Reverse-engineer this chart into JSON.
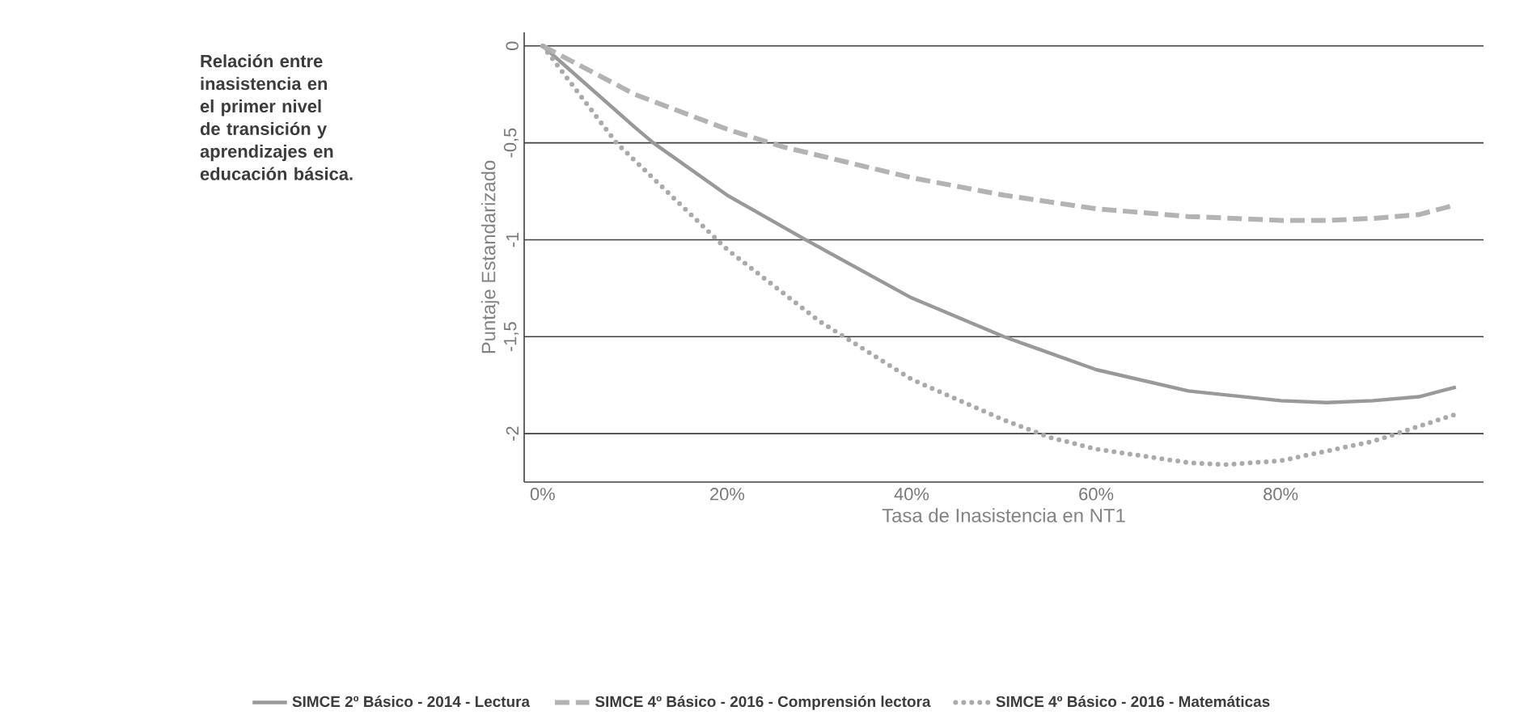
{
  "chart_data": {
    "type": "line",
    "title": "Relación entre inasistencia en el primer nivel de transición y aprendizajes en educación básica.",
    "xlabel": "Tasa de Inasistencia en NT1",
    "ylabel": "Puntaje Estandarizado",
    "xlim": [
      -2,
      102
    ],
    "ylim": [
      -2.25,
      0.07
    ],
    "xticks": [
      {
        "value": 0,
        "label": "0%"
      },
      {
        "value": 20,
        "label": "20%"
      },
      {
        "value": 40,
        "label": "40%"
      },
      {
        "value": 60,
        "label": "60%"
      },
      {
        "value": 80,
        "label": "80%"
      }
    ],
    "yticks": [
      {
        "value": 0,
        "label": "0"
      },
      {
        "value": -0.5,
        "label": "-0,5"
      },
      {
        "value": -1,
        "label": "-1"
      },
      {
        "value": -1.5,
        "label": "-1,5"
      },
      {
        "value": -2,
        "label": "-2"
      }
    ],
    "grid": "y",
    "legend": "bottom",
    "series": [
      {
        "name": "SIMCE 2º Básico - 2014 - Lectura",
        "color": "#999999",
        "line_style": "solid",
        "x": [
          0,
          10,
          12,
          20,
          28.5,
          40,
          50,
          60,
          70,
          80,
          85,
          90,
          95,
          99
        ],
        "values": [
          0,
          -0.42,
          -0.5,
          -0.77,
          -1.0,
          -1.3,
          -1.5,
          -1.67,
          -1.78,
          -1.83,
          -1.84,
          -1.83,
          -1.81,
          -1.76
        ]
      },
      {
        "name": "SIMCE 4º Básico - 2016 - Comprensión lectora",
        "color": "#b3b3b3",
        "line_style": "dashed",
        "x": [
          0,
          10,
          20,
          26,
          40,
          50,
          60,
          70,
          80,
          85,
          90,
          95,
          99
        ],
        "values": [
          0,
          -0.25,
          -0.43,
          -0.52,
          -0.68,
          -0.77,
          -0.84,
          -0.88,
          -0.9,
          -0.9,
          -0.89,
          -0.87,
          -0.82
        ]
      },
      {
        "name": "SIMCE 4º Básico - 2016 - Matemáticas",
        "color": "#aaaaaa",
        "line_style": "dotted",
        "x": [
          0,
          8,
          20,
          30,
          40,
          50,
          55,
          60,
          70,
          74,
          80,
          90,
          99
        ],
        "values": [
          0,
          -0.5,
          -1.05,
          -1.42,
          -1.72,
          -1.93,
          -2.02,
          -2.08,
          -2.15,
          -2.16,
          -2.14,
          -2.04,
          -1.9
        ]
      }
    ]
  }
}
